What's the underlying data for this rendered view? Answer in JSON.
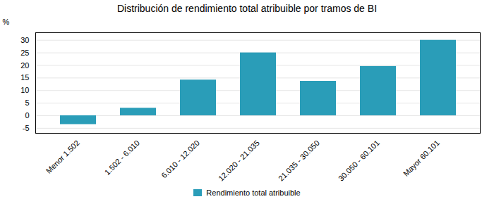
{
  "chart_data": {
    "type": "bar",
    "title": "Distribución de rendimiento total atribuible por tramos de BI",
    "ylabel": "%",
    "categories": [
      "Menor 1.502",
      "1.502 - 6.010",
      "6.010 - 12.020",
      "12.020 - 21.035",
      "21.035 - 30.050",
      "30.050 - 60.101",
      "Mayor 60.101"
    ],
    "series": [
      {
        "name": "Rendimiento total atribuible",
        "color": "#2a9db8",
        "values": [
          -3.5,
          3.0,
          14.2,
          25.0,
          13.7,
          19.6,
          30.0
        ]
      }
    ],
    "ylim": [
      -7,
      33
    ],
    "yticks": [
      -5,
      0,
      5,
      10,
      15,
      20,
      25,
      30
    ],
    "grid": true,
    "legend": "bottom"
  }
}
